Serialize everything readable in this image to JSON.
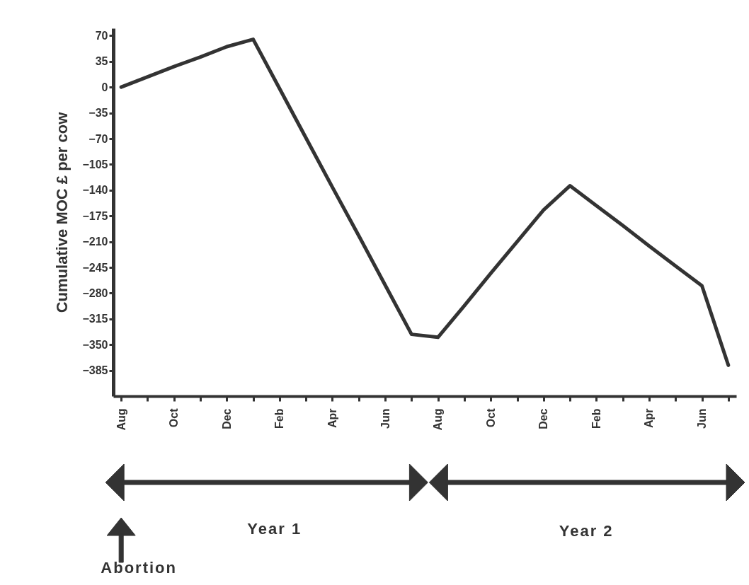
{
  "chart_data": {
    "type": "line",
    "ylabel": "Cumulative MOC £ per cow",
    "categories": [
      "Aug",
      null,
      "Oct",
      null,
      "Dec",
      null,
      "Feb",
      null,
      "Apr",
      null,
      "Jun",
      null,
      "Aug",
      null,
      "Oct",
      null,
      "Dec",
      null,
      "Feb",
      null,
      "Apr",
      null,
      "Jun",
      null
    ],
    "series": [
      {
        "color": "#333333",
        "values": [
          0,
          14,
          28,
          41,
          55,
          65,
          -2,
          -69,
          -136,
          -202,
          -269,
          -336,
          -340,
          -297,
          -253,
          -210,
          -167,
          -134,
          -161,
          -188,
          -216,
          -243,
          -270,
          -378
        ]
      }
    ],
    "ylim": [
      -420,
      80
    ],
    "yticks": [
      70,
      35,
      0,
      -35,
      -70,
      -105,
      -140,
      -175,
      -210,
      -245,
      -280,
      -315,
      -350,
      -385
    ],
    "grid": false,
    "marker": "none",
    "line_style": "solid",
    "annotations": [
      "Year 1",
      "Year 2",
      "Abortion"
    ]
  }
}
